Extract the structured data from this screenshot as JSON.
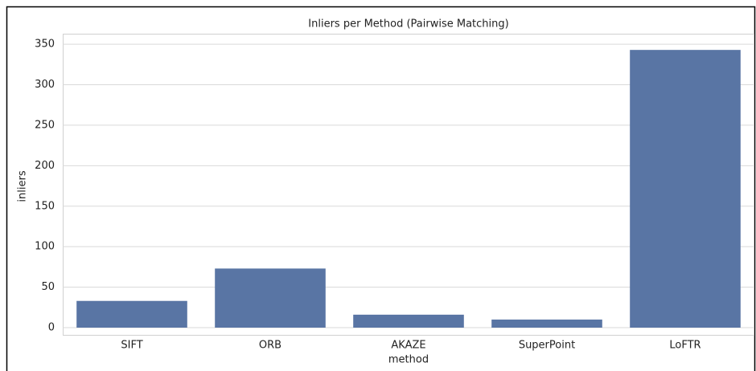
{
  "chart_data": {
    "type": "bar",
    "title": "Inliers per Method (Pairwise Matching)",
    "x_label": "method",
    "y_label": "inliers",
    "categories": [
      "SIFT",
      "ORB",
      "AKAZE",
      "SuperPoint",
      "LoFTR"
    ],
    "values": [
      33,
      73,
      16,
      10,
      343
    ],
    "color": "#5975a4",
    "ylim": [
      0,
      363
    ],
    "yticks": [
      0,
      50,
      100,
      150,
      200,
      250,
      300,
      350
    ],
    "grid": true
  }
}
